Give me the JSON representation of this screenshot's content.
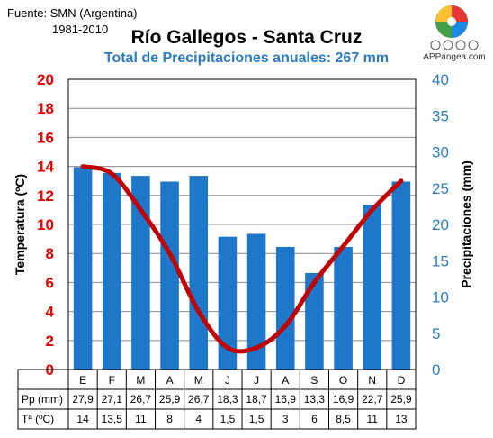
{
  "header": {
    "source_line": "Fuente: SMN (Argentina)",
    "years": "1981-2010",
    "title": "Río Gallegos - Santa Cruz",
    "subtitle": "Total de Precipitaciones anuales: 267 mm",
    "brand": "APPangea.com",
    "license_icons": [
      "cc-icon",
      "by-icon",
      "nc-icon",
      "nd-icon"
    ]
  },
  "table": {
    "pp_label": "Pp (mm)",
    "t_label": "Tª (ºC)",
    "pp_values": [
      "27,9",
      "27,1",
      "26,7",
      "25,9",
      "26,7",
      "18,3",
      "18,7",
      "16,9",
      "13,3",
      "16,9",
      "22,7",
      "25,9"
    ],
    "t_values": [
      "14",
      "13,5",
      "11",
      "8",
      "4",
      "1,5",
      "1,5",
      "3",
      "6",
      "8,5",
      "11",
      "13"
    ]
  },
  "colors": {
    "bars": "#1f77c9",
    "temperature_line": "#c00000",
    "temp_axis": "#e00000",
    "precip_axis": "#2e7bc0",
    "subtitle": "#2e7bc0"
  },
  "chart_data": {
    "type": "bar",
    "title": "Río Gallegos - Santa Cruz",
    "subtitle": "Total de Precipitaciones anuales: 267 mm",
    "categories": [
      "E",
      "F",
      "M",
      "A",
      "M",
      "J",
      "J",
      "A",
      "S",
      "O",
      "N",
      "D"
    ],
    "series": [
      {
        "name": "Pp (mm)",
        "type": "bar",
        "axis": "right",
        "values": [
          27.9,
          27.1,
          26.7,
          25.9,
          26.7,
          18.3,
          18.7,
          16.9,
          13.3,
          16.9,
          22.7,
          25.9
        ]
      },
      {
        "name": "Tª (ºC)",
        "type": "line",
        "axis": "left",
        "values": [
          14,
          13.5,
          11,
          8,
          4,
          1.5,
          1.5,
          3,
          6,
          8.5,
          11,
          13
        ]
      }
    ],
    "left_axis": {
      "label": "Temperatura (ºC)",
      "range": [
        0,
        20
      ],
      "ticks": [
        0,
        2,
        4,
        6,
        8,
        10,
        12,
        14,
        16,
        18,
        20
      ]
    },
    "right_axis": {
      "label": "Precipitaciones (mm)",
      "range": [
        0,
        40
      ],
      "ticks": [
        0,
        5,
        10,
        15,
        20,
        25,
        30,
        35,
        40
      ]
    },
    "grid": true
  }
}
